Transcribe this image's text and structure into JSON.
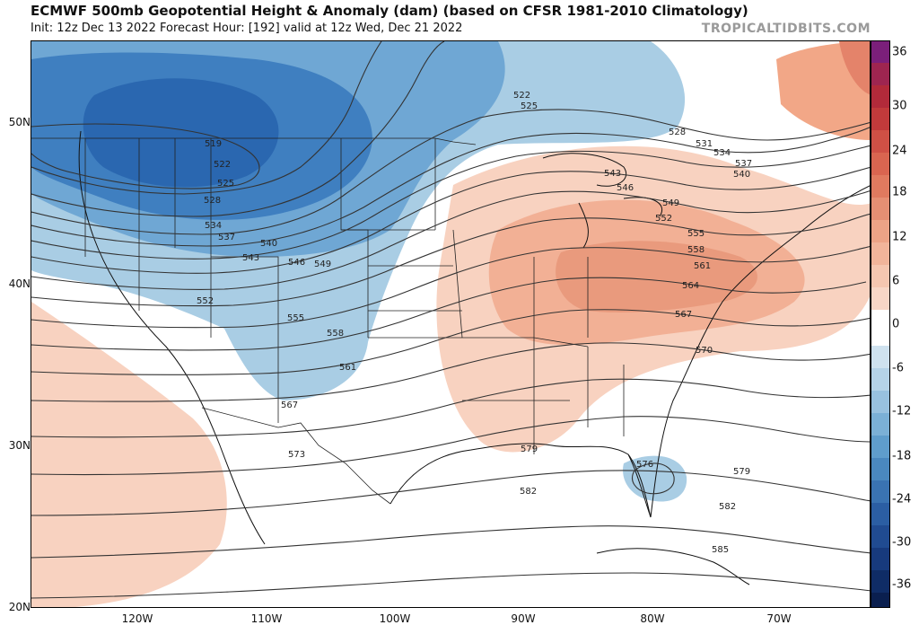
{
  "header": {
    "title": "ECMWF 500mb Geopotential Height & Anomaly (dam) (based on CFSR 1981-2010 Climatology)",
    "subtitle": "Init: 12z Dec 13 2022   Forecast Hour: [192]   valid at 12z Wed, Dec 21 2022",
    "credit": "TROPICALTIDBITS.COM"
  },
  "axes": {
    "lat_labels": [
      "50N",
      "40N",
      "30N",
      "20N"
    ],
    "lon_labels": [
      "120W",
      "110W",
      "100W",
      "90W",
      "80W",
      "70W"
    ]
  },
  "colorbar": {
    "ticks": [
      "36",
      "30",
      "24",
      "18",
      "12",
      "6",
      "0",
      "-6",
      "-12",
      "-18",
      "-24",
      "-30",
      "-36"
    ]
  },
  "contour_labels": [
    "519",
    "522",
    "525",
    "528",
    "531",
    "534",
    "537",
    "540",
    "543",
    "546",
    "549",
    "552",
    "555",
    "558",
    "561",
    "564",
    "567",
    "570",
    "573",
    "576",
    "579",
    "582",
    "585"
  ],
  "contour_label_instances": [
    {
      "label": "519"
    },
    {
      "label": "522"
    },
    {
      "label": "525"
    },
    {
      "label": "528"
    },
    {
      "label": "534"
    },
    {
      "label": "537"
    },
    {
      "label": "540"
    },
    {
      "label": "543"
    },
    {
      "label": "546"
    },
    {
      "label": "549"
    },
    {
      "label": "552"
    },
    {
      "label": "555"
    },
    {
      "label": "558"
    },
    {
      "label": "561"
    },
    {
      "label": "567"
    },
    {
      "label": "573"
    },
    {
      "label": "522"
    },
    {
      "label": "525"
    },
    {
      "label": "528"
    },
    {
      "label": "531"
    },
    {
      "label": "534"
    },
    {
      "label": "537"
    },
    {
      "label": "540"
    },
    {
      "label": "543"
    },
    {
      "label": "546"
    },
    {
      "label": "549"
    },
    {
      "label": "552"
    },
    {
      "label": "555"
    },
    {
      "label": "558"
    },
    {
      "label": "561"
    },
    {
      "label": "564"
    },
    {
      "label": "567"
    },
    {
      "label": "570"
    },
    {
      "label": "579"
    },
    {
      "label": "576"
    },
    {
      "label": "579"
    },
    {
      "label": "582"
    },
    {
      "label": "582"
    },
    {
      "label": "585"
    }
  ],
  "colors": {
    "neg_strong": "#1f5aa6",
    "neg_mid": "#4d8fca",
    "neg_light": "#a9cde4",
    "pos_light": "#f8d2c0",
    "pos_mid": "#f2a787",
    "pos_strong": "#e4836a"
  }
}
